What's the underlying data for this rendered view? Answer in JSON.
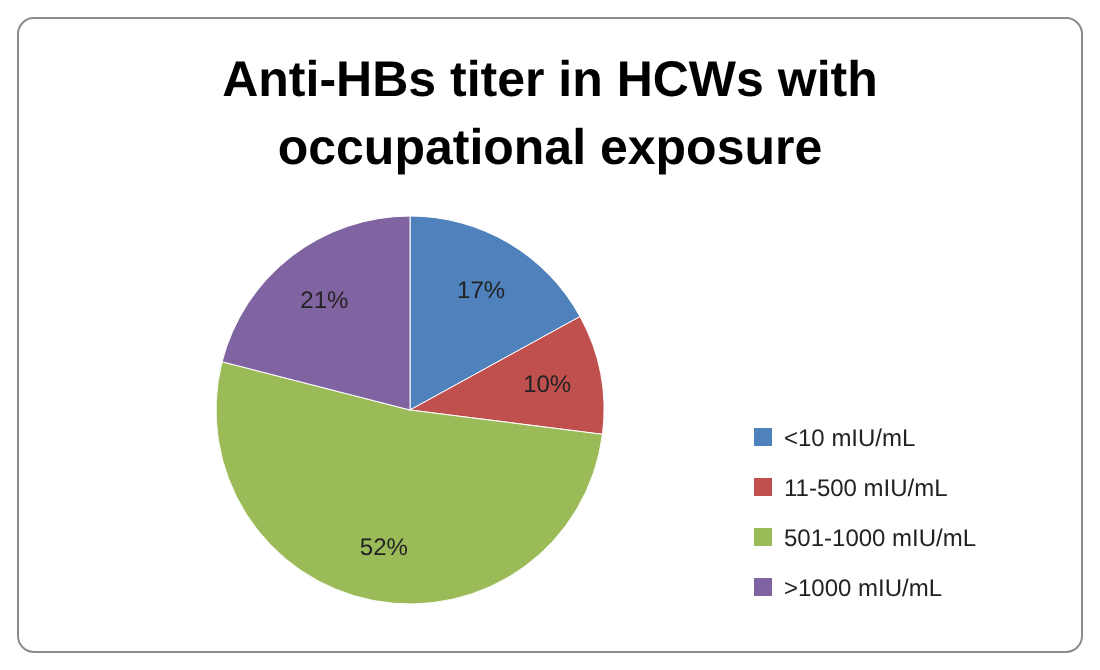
{
  "chart_data": {
    "type": "pie",
    "title": "Anti-HBs titer in HCWs with occupational exposure",
    "categories": [
      "<10 mIU/mL",
      "11-500 mIU/mL",
      "501-1000 mIU/mL",
      ">1000 mIU/mL"
    ],
    "values": [
      17,
      10,
      52,
      21
    ],
    "colors": [
      "#4f81bd",
      "#c0504d",
      "#9bbb59",
      "#8064a2"
    ],
    "value_labels": [
      "17%",
      "10%",
      "52%",
      "21%"
    ],
    "legend": "right"
  }
}
